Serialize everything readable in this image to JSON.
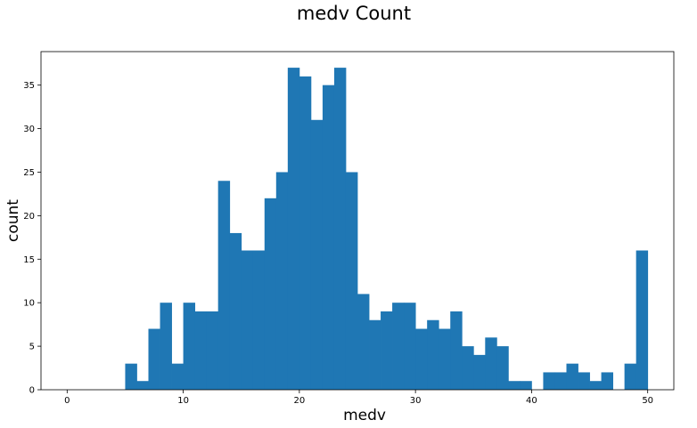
{
  "chart_data": {
    "type": "bar",
    "title": "medv Count",
    "xlabel": "medv",
    "ylabel": "count",
    "xlim": [
      -2.25,
      52.25
    ],
    "ylim": [
      0,
      38.85
    ],
    "x_ticks": [
      0,
      10,
      20,
      30,
      40,
      50
    ],
    "y_ticks": [
      0,
      5,
      10,
      15,
      20,
      25,
      30,
      35
    ],
    "bin_start": 5,
    "bin_width": 1,
    "values": [
      3,
      1,
      7,
      10,
      3,
      10,
      9,
      9,
      24,
      18,
      16,
      16,
      22,
      25,
      37,
      36,
      31,
      35,
      37,
      25,
      11,
      8,
      9,
      10,
      10,
      7,
      8,
      7,
      9,
      5,
      4,
      6,
      5,
      1,
      1,
      0,
      2,
      2,
      3,
      2,
      1,
      2,
      0,
      3,
      16
    ],
    "bar_color": "#1f77b4",
    "grid": false
  }
}
